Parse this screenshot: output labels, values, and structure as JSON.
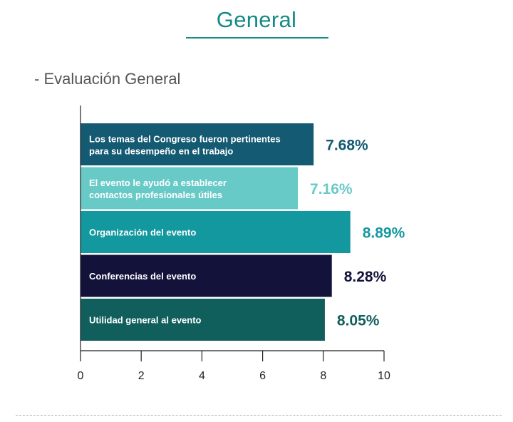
{
  "header": {
    "title": "General",
    "section": "- Evaluación General"
  },
  "colors": {
    "accent": "#138a87",
    "heading": "#555555"
  },
  "chart_data": {
    "type": "bar",
    "orientation": "horizontal",
    "categories_line1": [
      "Los temas del Congreso fueron pertinentes",
      "El evento le ayudó a establecer",
      "Organización del evento",
      "Conferencias del evento",
      "Utilidad general al evento"
    ],
    "categories_line2": [
      "para su desempeño en el trabajo",
      "contactos profesionales útiles",
      "",
      "",
      ""
    ],
    "values": [
      7.68,
      7.16,
      8.89,
      8.28,
      8.05
    ],
    "value_labels": [
      "7.68%",
      "7.16%",
      "8.89%",
      "8.28%",
      "8.05%"
    ],
    "bar_colors": [
      "#135a72",
      "#68cac6",
      "#13989f",
      "#13123a",
      "#115f5d"
    ],
    "label_colors": [
      "#135a72",
      "#68cac6",
      "#13989f",
      "#13123a",
      "#115f5d"
    ],
    "xlim": [
      0,
      10
    ],
    "ticks": [
      0,
      2,
      4,
      6,
      8,
      10
    ],
    "tick_labels": [
      "0",
      "2",
      "4",
      "6",
      "8",
      "10"
    ],
    "grid": false
  }
}
